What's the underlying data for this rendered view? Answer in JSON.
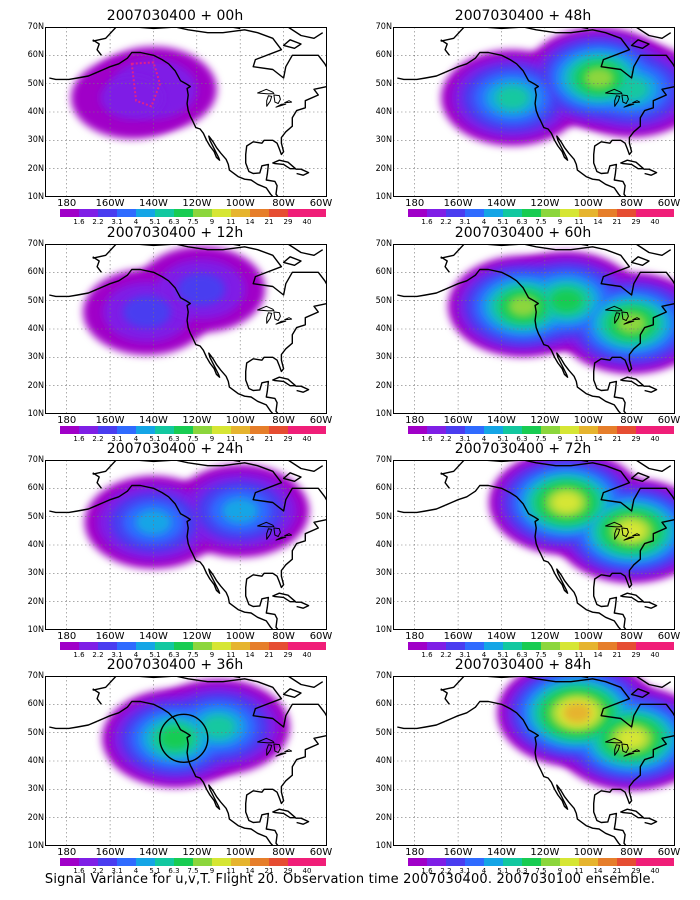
{
  "figure": {
    "caption": "Signal Variance for u,v,T. Flight 20. Observation time 2007030400. 2007030100 ensemble."
  },
  "axes": {
    "lat_labels": [
      "70N",
      "60N",
      "50N",
      "40N",
      "30N",
      "20N",
      "10N"
    ],
    "lon_labels": [
      "180",
      "160W",
      "140W",
      "120W",
      "100W",
      "80W",
      "60W"
    ]
  },
  "colorbar": {
    "levels": [
      "1.6",
      "2.2",
      "3.1",
      "4",
      "5.1",
      "6.3",
      "7.5",
      "9",
      "11",
      "14",
      "21",
      "29",
      "40"
    ],
    "colors": [
      "#a000c8",
      "#7f1fe6",
      "#4a3df0",
      "#2f6bff",
      "#14a5e6",
      "#12c8a0",
      "#18cc52",
      "#8cd63c",
      "#d6e634",
      "#e6b42e",
      "#e67e2a",
      "#e64d32",
      "#f01e78"
    ]
  },
  "panels": [
    {
      "title": "2007030400 + 00h"
    },
    {
      "title": "2007030400 + 48h"
    },
    {
      "title": "2007030400 + 12h"
    },
    {
      "title": "2007030400 + 60h"
    },
    {
      "title": "2007030400 + 24h"
    },
    {
      "title": "2007030400 + 72h"
    },
    {
      "title": "2007030400 + 36h"
    },
    {
      "title": "2007030400 + 84h"
    }
  ],
  "chart_data": {
    "type": "heatmap",
    "map_extent": {
      "lon": [
        "170E",
        "60W"
      ],
      "lat": [
        "10N",
        "70N"
      ]
    },
    "panels": [
      {
        "valid": "+00h",
        "blobs": [
          [
            -140,
            48,
            2.9
          ],
          [
            -150,
            45,
            2.2
          ]
        ]
      },
      {
        "valid": "+48h",
        "blobs": [
          [
            -135,
            45,
            6.3
          ],
          [
            -95,
            52,
            9
          ],
          [
            -80,
            48,
            6.3
          ]
        ]
      },
      {
        "valid": "+12h",
        "blobs": [
          [
            -143,
            46,
            3.1
          ],
          [
            -118,
            54,
            3.1
          ]
        ]
      },
      {
        "valid": "+60h",
        "blobs": [
          [
            -130,
            48,
            9
          ],
          [
            -110,
            50,
            7.5
          ],
          [
            -80,
            42,
            9
          ]
        ]
      },
      {
        "valid": "+24h",
        "blobs": [
          [
            -140,
            48,
            5.1
          ],
          [
            -100,
            52,
            5.1
          ]
        ]
      },
      {
        "valid": "+72h",
        "blobs": [
          [
            -110,
            55,
            11
          ],
          [
            -80,
            45,
            11
          ]
        ]
      },
      {
        "valid": "+36h",
        "blobs": [
          [
            -130,
            48,
            7.5
          ],
          [
            -110,
            52,
            6.3
          ]
        ]
      },
      {
        "valid": "+84h",
        "blobs": [
          [
            -105,
            57,
            14
          ],
          [
            -80,
            48,
            11
          ]
        ]
      }
    ],
    "colorbar_levels": [
      1.6,
      2.2,
      3.1,
      4,
      5.1,
      6.3,
      7.5,
      9,
      11,
      14,
      21,
      29,
      40
    ],
    "grid": true
  }
}
